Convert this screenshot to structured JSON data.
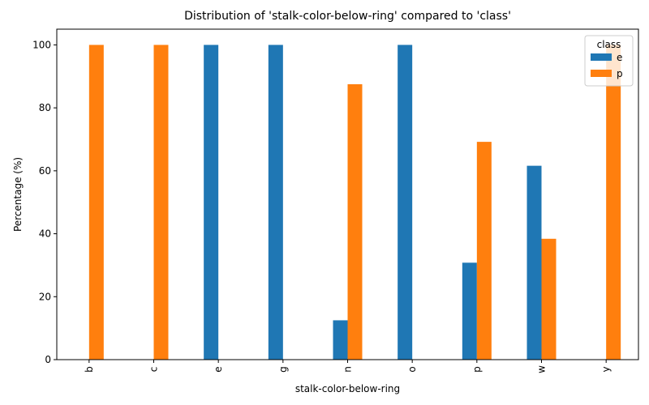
{
  "chart_data": {
    "type": "bar",
    "title": "Distribution of 'stalk-color-below-ring' compared to 'class'",
    "xlabel": "stalk-color-below-ring",
    "ylabel": "Percentage (%)",
    "ylim": [
      0,
      105
    ],
    "yticks": [
      0,
      20,
      40,
      60,
      80,
      100
    ],
    "grid": false,
    "categories": [
      "b",
      "c",
      "e",
      "g",
      "n",
      "o",
      "p",
      "w",
      "y"
    ],
    "legend": {
      "title": "class",
      "placement": "top-right"
    },
    "series": [
      {
        "name": "e",
        "color": "#1f77b4",
        "values": [
          0,
          0,
          100,
          100,
          12.5,
          100,
          30.8,
          61.6,
          0
        ]
      },
      {
        "name": "p",
        "color": "#ff7f0e",
        "values": [
          100,
          100,
          0,
          0,
          87.5,
          0,
          69.2,
          38.4,
          100
        ]
      }
    ]
  }
}
